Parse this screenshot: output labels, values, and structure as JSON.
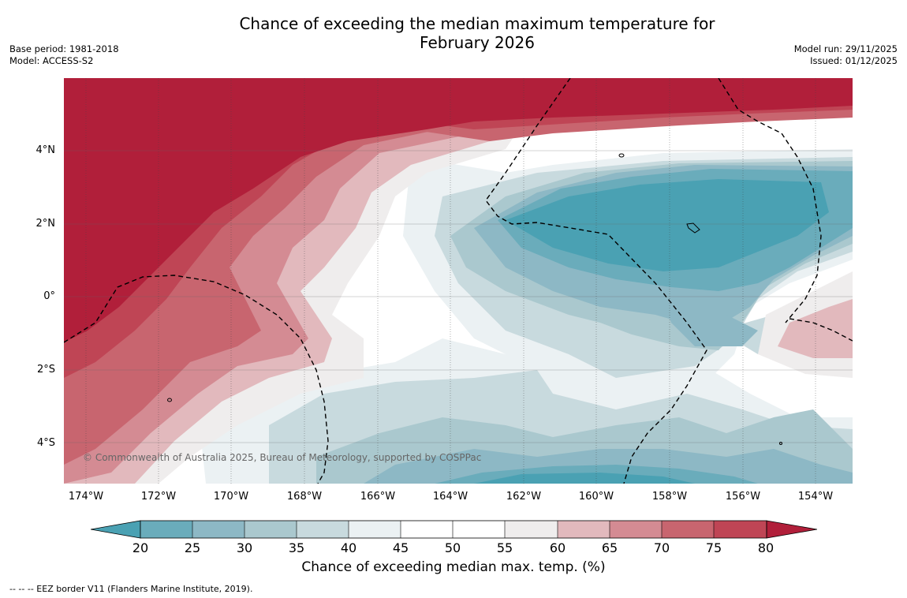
{
  "title": {
    "line1": "Chance of exceeding the median maximum temperature for",
    "line2": "February 2026"
  },
  "meta_left": {
    "base_period": "Base period: 1981-2018",
    "model": "Model: ACCESS-S2"
  },
  "meta_right": {
    "model_run": "Model run: 29/11/2025",
    "issued": "Issued: 01/12/2025"
  },
  "map": {
    "lat_labels": [
      "4°N",
      "2°N",
      "0°",
      "2°S",
      "4°S"
    ],
    "lon_labels": [
      "174°W",
      "172°W",
      "170°W",
      "168°W",
      "166°W",
      "164°W",
      "162°W",
      "160°W",
      "158°W",
      "156°W",
      "154°W"
    ],
    "copyright": "© Commonwealth of Australia 2025, Bureau of Meteorology, supported by COSPPac"
  },
  "colorbar": {
    "ticks": [
      "20",
      "25",
      "30",
      "35",
      "40",
      "45",
      "50",
      "55",
      "60",
      "65",
      "70",
      "75",
      "80"
    ],
    "label": "Chance of exceeding median max. temp. (%)",
    "colors": {
      "below20": "#4aa1b3",
      "20-25": "#6aacbb",
      "25-30": "#8db8c5",
      "30-35": "#aac8ce",
      "35-40": "#c8dade",
      "40-45": "#ebf1f3",
      "45-50": "#ffffff",
      "50-55": "#ffffff",
      "55-60": "#efeded",
      "60-65": "#e2b9bd",
      "65-70": "#d48b93",
      "70-75": "#c8656f",
      "75-80": "#bf4555",
      "above80": "#b11f3a"
    }
  },
  "footer": "--  --  -- EEZ border V11 (Flanders Marine Institute, 2019)."
}
